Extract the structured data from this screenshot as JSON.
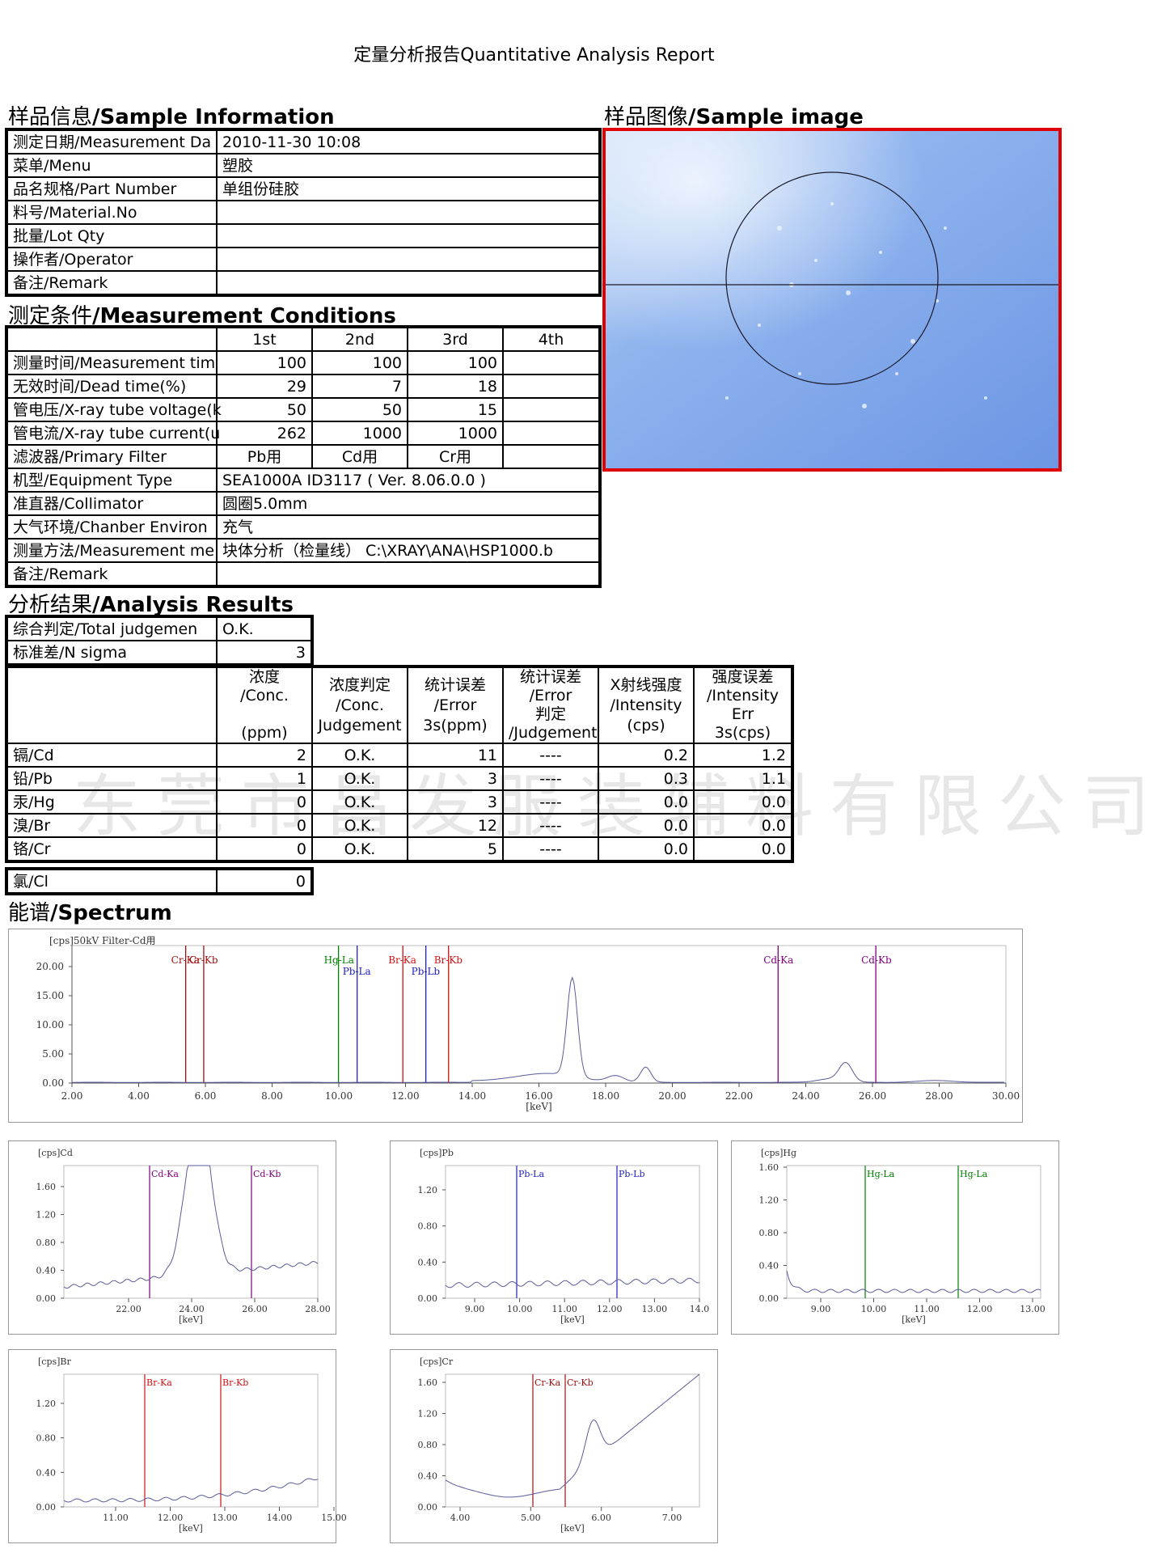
{
  "report_title": "定量分析报告Quantitative Analysis Report",
  "sections": {
    "sample_info_cn": "样品信息",
    "sample_info_en": "/Sample Information",
    "sample_image_cn": "样品图像",
    "sample_image_en": "/Sample image",
    "conditions_cn": "测定条件",
    "conditions_en": "/Measurement Conditions",
    "results_cn": "分析结果",
    "results_en": "/Analysis Results",
    "spectrum_cn": "能谱",
    "spectrum_en": "/Spectrum"
  },
  "sample_info": [
    {
      "label": "测定日期/Measurement Da",
      "value": "2010-11-30 10:08"
    },
    {
      "label": "菜单/Menu",
      "value": "塑胶"
    },
    {
      "label": "品名规格/Part Number",
      "value": "单组份硅胶"
    },
    {
      "label": "料号/Material.No",
      "value": ""
    },
    {
      "label": "批量/Lot Qty",
      "value": ""
    },
    {
      "label": "操作者/Operator",
      "value": ""
    },
    {
      "label": "备注/Remark",
      "value": ""
    }
  ],
  "conditions": {
    "headers": [
      "1st",
      "2nd",
      "3rd",
      "4th"
    ],
    "rows": [
      {
        "label": "测量时间/Measurement tim",
        "values": [
          "100",
          "100",
          "100",
          ""
        ]
      },
      {
        "label": "无效时间/Dead time(%)",
        "values": [
          "29",
          "7",
          "18",
          ""
        ]
      },
      {
        "label": "管电压/X-ray tube voltage(k",
        "values": [
          "50",
          "50",
          "15",
          ""
        ]
      },
      {
        "label": "管电流/X-ray tube current(u",
        "values": [
          "262",
          "1000",
          "1000",
          ""
        ]
      },
      {
        "label": "滤波器/Primary Filter",
        "values": [
          "Pb用",
          "Cd用",
          "Cr用",
          ""
        ]
      }
    ],
    "equipment_label": "机型/Equipment Type",
    "equipment_value": "SEA1000A  ID3117 ( Ver. 8.06.0.0 )",
    "collimator_label": "准直器/Collimator",
    "collimator_value": "圆圈5.0mm",
    "environment_label": "大气环境/Chanber Environ",
    "environment_value": "充气",
    "method_label": "测量方法/Measurement me",
    "method_value": "块体分析（检量线） C:\\XRAY\\ANA\\HSP1000.b",
    "remark_label": "备注/Remark",
    "remark_value": ""
  },
  "results": {
    "total_label": "综合判定/Total judgemen",
    "total_value": "O.K.",
    "nsigma_label": "标准差/N sigma",
    "nsigma_value": "3",
    "headers": [
      "浓度\n/Conc.\n\n(ppm)",
      "浓度判定\n/Conc.\nJudgement",
      "统计误差\n/Error\n3s(ppm)",
      "统计误差\n/Error\n判定\n/Judgement",
      "X射线强度\n/Intensity\n(cps)",
      "强度误差\n/Intensity\nErr\n3s(cps)"
    ],
    "rows": [
      {
        "element": "镉/Cd",
        "conc": "2",
        "judge": "O.K.",
        "err": "11",
        "err_judge": "----",
        "intensity": "0.2",
        "int_err": "1.2"
      },
      {
        "element": "铅/Pb",
        "conc": "1",
        "judge": "O.K.",
        "err": "3",
        "err_judge": "----",
        "intensity": "0.3",
        "int_err": "1.1"
      },
      {
        "element": "汞/Hg",
        "conc": "0",
        "judge": "O.K.",
        "err": "3",
        "err_judge": "----",
        "intensity": "0.0",
        "int_err": "0.0"
      },
      {
        "element": "溴/Br",
        "conc": "0",
        "judge": "O.K.",
        "err": "12",
        "err_judge": "----",
        "intensity": "0.0",
        "int_err": "0.0"
      },
      {
        "element": "铬/Cr",
        "conc": "0",
        "judge": "O.K.",
        "err": "5",
        "err_judge": "----",
        "intensity": "0.0",
        "int_err": "0.0"
      }
    ],
    "cl_label": "氯/Cl",
    "cl_value": "0"
  },
  "watermark": "东莞市昌发服装辅料有限公司",
  "spectra": {
    "main": {
      "header": "[cps]50kV Filter-Cd用",
      "unit": "[keV]",
      "yticks": [
        "20.00",
        "15.00",
        "10.00",
        "5.00",
        "0.00"
      ],
      "xticks": [
        "2.00",
        "4.00",
        "6.00",
        "8.00",
        "10.00",
        "12.00",
        "14.00",
        "16.00",
        "18.00",
        "20.00",
        "22.00",
        "24.00",
        "26.00",
        "28.00",
        "30.00"
      ],
      "markers": [
        {
          "label": "Cr-Ka",
          "x": 5.41,
          "color": "#a01010"
        },
        {
          "label": "Cr-Kb",
          "x": 5.95,
          "color": "#a01010"
        },
        {
          "label": "Hg-La",
          "x": 9.99,
          "color": "#008000"
        },
        {
          "label": "Pb-La",
          "x": 10.55,
          "color": "#2020c0"
        },
        {
          "label": "Br-Ka",
          "x": 11.92,
          "color": "#d01010"
        },
        {
          "label": "Pb-Lb",
          "x": 12.61,
          "color": "#2020c0"
        },
        {
          "label": "Br-Kb",
          "x": 13.29,
          "color": "#d01010"
        },
        {
          "label": "Cd-Ka",
          "x": 23.17,
          "color": "#800080"
        },
        {
          "label": "Cd-Kb",
          "x": 26.1,
          "color": "#800080"
        }
      ]
    },
    "cd": {
      "header": "[cps]Cd",
      "unit": "[keV]",
      "yticks": [
        "1.60",
        "1.20",
        "0.80",
        "0.40",
        "0.00"
      ],
      "xticks": [
        "22.00",
        "24.00",
        "26.00",
        "28.00"
      ],
      "markers": [
        {
          "label": "Cd-Ka",
          "color": "#800080"
        },
        {
          "label": "Cd-Kb",
          "color": "#800080"
        }
      ]
    },
    "pb": {
      "header": "[cps]Pb",
      "unit": "[keV]",
      "yticks": [
        "1.20",
        "0.80",
        "0.40",
        "0.00"
      ],
      "xticks": [
        "9.00",
        "10.00",
        "11.00",
        "12.00",
        "13.00",
        "14.0"
      ],
      "markers": [
        {
          "label": "Pb-La",
          "color": "#2020c0"
        },
        {
          "label": "Pb-Lb",
          "color": "#2020c0"
        }
      ]
    },
    "hg": {
      "header": "[cps]Hg",
      "unit": "[keV]",
      "yticks": [
        "1.60",
        "1.20",
        "0.80",
        "0.40",
        "0.00"
      ],
      "xticks": [
        "9.00",
        "10.00",
        "11.00",
        "12.00",
        "13.00"
      ],
      "markers": [
        {
          "label": "Hg-La",
          "color": "#008000"
        },
        {
          "label": "Hg-La",
          "color": "#008000"
        }
      ]
    },
    "br": {
      "header": "[cps]Br",
      "unit": "[keV]",
      "yticks": [
        "1.20",
        "0.80",
        "0.40",
        "0.00"
      ],
      "xticks": [
        "11.00",
        "12.00",
        "13.00",
        "14.00",
        "15.00"
      ],
      "markers": [
        {
          "label": "Br-Ka",
          "color": "#d01010"
        },
        {
          "label": "Br-Kb",
          "color": "#d01010"
        }
      ]
    },
    "cr": {
      "header": "[cps]Cr",
      "unit": "[keV]",
      "yticks": [
        "1.60",
        "1.20",
        "0.80",
        "0.40",
        "0.00"
      ],
      "xticks": [
        "4.00",
        "5.00",
        "6.00",
        "7.00"
      ],
      "markers": [
        {
          "label": "Cr-Ka",
          "color": "#a01010"
        },
        {
          "label": "Cr-Kb",
          "color": "#a01010"
        }
      ]
    }
  }
}
